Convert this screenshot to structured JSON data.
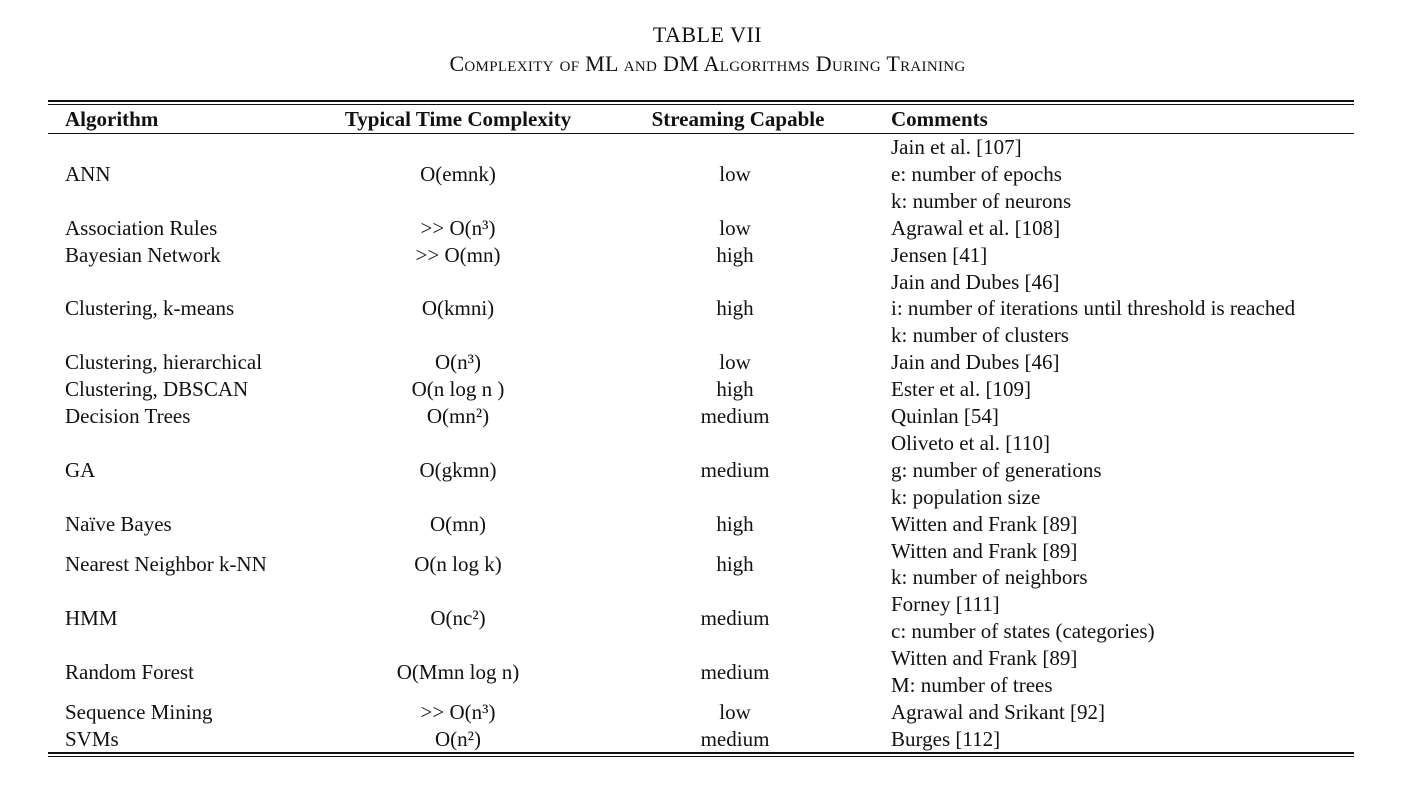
{
  "caption": {
    "number": "TABLE VII",
    "title": "Complexity of ML and DM Algorithms During Training"
  },
  "columns": [
    "Algorithm",
    "Typical Time Complexity",
    "Streaming Capable",
    "Comments"
  ],
  "rows": [
    {
      "algorithm": "ANN",
      "complexity": "O(emnk)",
      "streaming": "low",
      "comments": [
        "Jain et al. [107]",
        "e: number of epochs",
        "k: number of neurons"
      ]
    },
    {
      "algorithm": "Association Rules",
      "complexity": ">> O(n³)",
      "streaming": "low",
      "comments": [
        "Agrawal et al. [108]"
      ]
    },
    {
      "algorithm": "Bayesian Network",
      "complexity": ">> O(mn)",
      "streaming": "high",
      "comments": [
        "Jensen [41]"
      ]
    },
    {
      "algorithm": "Clustering, k-means",
      "complexity": "O(kmni)",
      "streaming": "high",
      "comments": [
        "Jain and Dubes [46]",
        "i: number of iterations until threshold is reached",
        "k: number of clusters"
      ]
    },
    {
      "algorithm": "Clustering, hierarchical",
      "complexity": "O(n³)",
      "streaming": "low",
      "comments": [
        "Jain and Dubes [46]"
      ]
    },
    {
      "algorithm": "Clustering, DBSCAN",
      "complexity": "O(n log n )",
      "streaming": "high",
      "comments": [
        "Ester et al. [109]"
      ]
    },
    {
      "algorithm": "Decision Trees",
      "complexity": "O(mn²)",
      "streaming": "medium",
      "comments": [
        "Quinlan [54]"
      ]
    },
    {
      "algorithm": "GA",
      "complexity": "O(gkmn)",
      "streaming": "medium",
      "comments": [
        "Oliveto et al. [110]",
        "g: number of generations",
        "k: population size"
      ]
    },
    {
      "algorithm": "Naïve Bayes",
      "complexity": "O(mn)",
      "streaming": "high",
      "comments": [
        "Witten and Frank [89]"
      ]
    },
    {
      "algorithm": "Nearest Neighbor k-NN",
      "complexity": "O(n log k)",
      "streaming": "high",
      "comments": [
        "Witten and Frank [89]",
        "k: number of neighbors"
      ]
    },
    {
      "algorithm": "HMM",
      "complexity": "O(nc²)",
      "streaming": "medium",
      "comments": [
        "Forney [111]",
        "c: number of states (categories)"
      ]
    },
    {
      "algorithm": "Random Forest",
      "complexity": "O(Mmn log n)",
      "streaming": "medium",
      "comments": [
        "Witten and Frank [89]",
        "M: number of trees"
      ]
    },
    {
      "algorithm": "Sequence Mining",
      "complexity": ">> O(n³)",
      "streaming": "low",
      "comments": [
        "Agrawal and Srikant [92]"
      ]
    },
    {
      "algorithm": "SVMs",
      "complexity": "O(n²)",
      "streaming": "medium",
      "comments": [
        "Burges [112]"
      ]
    }
  ]
}
